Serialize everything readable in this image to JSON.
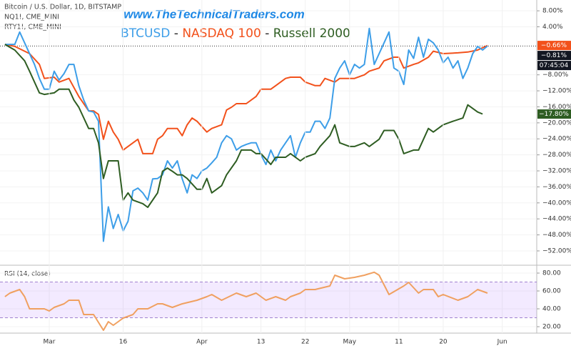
{
  "chart_data": [
    {
      "type": "line",
      "symbols": [
        "Bitcoin / U.S. Dollar, 1D, BITSTAMP",
        "NQ1!, CME_MINI",
        "RTY1!, CME_MINI"
      ],
      "watermark": "www.TheTechnicalTraders.com",
      "legend_separator": "-",
      "countdown": "07:45:04",
      "xlim": [
        -10,
        99
      ],
      "ylim": [
        -55.4,
        10.7
      ],
      "yticks": [
        {
          "value": 8,
          "label": "8.00%"
        },
        {
          "value": 4,
          "label": "4.00%"
        },
        {
          "value": -8,
          "label": "−8.00%"
        },
        {
          "value": -12,
          "label": "−12.00%"
        },
        {
          "value": -16,
          "label": "−16.00%"
        },
        {
          "value": -20,
          "label": "−20.00%"
        },
        {
          "value": -24,
          "label": "−24.00%"
        },
        {
          "value": -28,
          "label": "−28.00%"
        },
        {
          "value": -32,
          "label": "−32.00%"
        },
        {
          "value": -36,
          "label": "−36.00%"
        },
        {
          "value": -40,
          "label": "−40.00%"
        },
        {
          "value": -44,
          "label": "−44.00%"
        },
        {
          "value": -48,
          "label": "−48.00%"
        },
        {
          "value": -52,
          "label": "−52.00%"
        }
      ],
      "series": [
        {
          "name": "NASDAQ 100",
          "color": "#f2511b",
          "last_value_label": "−0.66%",
          "x": [
            -9,
            -7,
            -4,
            -2,
            -1,
            1,
            2,
            4,
            6,
            8,
            9,
            10,
            11,
            12,
            13,
            14,
            15,
            17,
            18,
            19,
            21,
            22,
            23,
            24,
            26,
            27,
            28,
            29,
            30,
            32,
            33,
            35,
            36,
            37,
            38,
            40,
            42,
            43,
            45,
            46,
            48,
            49,
            51,
            52,
            54,
            55,
            56,
            58,
            59,
            61,
            62,
            64,
            65,
            67,
            68,
            70,
            71,
            72,
            74,
            75,
            77,
            78,
            80,
            83,
            85,
            87,
            89
          ],
          "values": [
            -0.4,
            -0.9,
            -2.7,
            -5.4,
            -8.9,
            -8.6,
            -9.8,
            -8.9,
            -13.4,
            -17,
            -17,
            -17.9,
            -24.1,
            -19.6,
            -22.3,
            -24.1,
            -26.8,
            -25,
            -24.1,
            -27.7,
            -27.7,
            -24.1,
            -23.2,
            -21.4,
            -21.4,
            -23.2,
            -20.5,
            -18.8,
            -19.6,
            -22.3,
            -21.4,
            -20.5,
            -16.8,
            -16.1,
            -15.2,
            -15.2,
            -13.4,
            -11.6,
            -11.6,
            -10.7,
            -8.9,
            -8.6,
            -8.6,
            -9.8,
            -10.7,
            -10.7,
            -8.9,
            -9.8,
            -8.9,
            -8.9,
            -8.9,
            -8,
            -7.1,
            -6.3,
            -4.5,
            -3.6,
            -3.6,
            -6.3,
            -5.4,
            -5,
            -3.6,
            -2.1,
            -2.7,
            -2.5,
            -2.3,
            -1.8,
            -0.66
          ]
        },
        {
          "name": "BTCUSD",
          "color": "#3d9ee8",
          "last_value_label": "−0.81%",
          "price_line": true,
          "x": [
            -9,
            -7,
            -6,
            -5,
            -3,
            -2,
            -1,
            0,
            1,
            2,
            3,
            4,
            5,
            6,
            7,
            8,
            9,
            10,
            11,
            12,
            13,
            14,
            15,
            16,
            17,
            18,
            19,
            20,
            21,
            22,
            23,
            24,
            25,
            26,
            27,
            28,
            29,
            30,
            31,
            32,
            33,
            34,
            35,
            36,
            37,
            38,
            39,
            40,
            41,
            42,
            43,
            44,
            45,
            46,
            47,
            48,
            49,
            50,
            51,
            52,
            53,
            54,
            55,
            56,
            57,
            58,
            59,
            60,
            61,
            62,
            63,
            64,
            65,
            66,
            67,
            68,
            69,
            70,
            71,
            72,
            73,
            74,
            75,
            76,
            77,
            78,
            79,
            80,
            81,
            82,
            83,
            84,
            85,
            86,
            87,
            88,
            89
          ],
          "values": [
            -0.4,
            -0.4,
            2.7,
            0,
            -5.4,
            -8.9,
            -11.6,
            -11.6,
            -7.1,
            -9.3,
            -7.7,
            -5.4,
            -5.4,
            -10.7,
            -14.3,
            -17,
            -17.3,
            -19.6,
            -49.6,
            -41,
            -46.4,
            -42.9,
            -47,
            -44.6,
            -37,
            -36.3,
            -37.5,
            -39.3,
            -34,
            -33.9,
            -33,
            -29.5,
            -31.3,
            -29.5,
            -34,
            -37.5,
            -33,
            -33.9,
            -32,
            -31.3,
            -30,
            -28.6,
            -25,
            -23.2,
            -24,
            -26.8,
            -25.9,
            -25.4,
            -25,
            -25,
            -28,
            -30.4,
            -26.8,
            -29.5,
            -26.8,
            -25,
            -23.2,
            -28.6,
            -25,
            -22.3,
            -22.3,
            -19.6,
            -19.6,
            -21.4,
            -18.8,
            -8.9,
            -6.3,
            -4.5,
            -8,
            -5.4,
            -6.3,
            -5.4,
            3.6,
            -5.4,
            -2.7,
            0,
            2.7,
            -6.3,
            -7.1,
            -10.4,
            -1.8,
            -3.9,
            1.4,
            -3.6,
            0.9,
            0,
            -1.8,
            -5,
            -3.6,
            -6.3,
            -4.5,
            -8.9,
            -6.3,
            -2.7,
            -0.9,
            -1.8,
            -0.81
          ]
        },
        {
          "name": "Russell 2000",
          "color": "#2e5d22",
          "last_value_label": "−17.80%",
          "x": [
            -9,
            -7,
            -5,
            -4,
            -2,
            -1,
            1,
            2,
            4,
            5,
            6,
            8,
            9,
            10,
            11,
            12,
            14,
            15,
            16,
            17,
            19,
            20,
            22,
            23,
            24,
            25,
            26,
            27,
            28,
            30,
            31,
            32,
            33,
            35,
            36,
            38,
            39,
            41,
            42,
            43,
            45,
            46,
            48,
            49,
            51,
            52,
            54,
            55,
            57,
            58,
            59,
            61,
            62,
            64,
            65,
            67,
            68,
            70,
            71,
            72,
            74,
            75,
            77,
            78,
            80,
            82,
            84,
            85,
            87,
            88
          ],
          "values": [
            -0.4,
            -1.8,
            -4.5,
            -7.1,
            -12.5,
            -12.9,
            -12.5,
            -11.6,
            -11.6,
            -14.3,
            -16.1,
            -21.4,
            -21.4,
            -25,
            -33.9,
            -29.5,
            -29.5,
            -39.3,
            -37.5,
            -39.3,
            -40.2,
            -41.1,
            -37.5,
            -32.1,
            -31.3,
            -32.1,
            -33,
            -33,
            -33.9,
            -36.6,
            -36.6,
            -33.9,
            -37.5,
            -35.7,
            -33,
            -29.5,
            -26.8,
            -26.8,
            -27.7,
            -27.7,
            -30.4,
            -28.6,
            -28.6,
            -27.7,
            -29.5,
            -28.6,
            -27.7,
            -25.9,
            -23.2,
            -20.5,
            -25,
            -25.9,
            -25.9,
            -25,
            -25.9,
            -24.1,
            -21.9,
            -21.9,
            -24.1,
            -27.7,
            -26.8,
            -26.8,
            -21.4,
            -22.3,
            -20.5,
            -19.6,
            -18.8,
            -15.5,
            -17.3,
            -17.8
          ]
        }
      ]
    },
    {
      "type": "line",
      "title": "RSI (14, close)",
      "xlim": [
        -10,
        99
      ],
      "ylim": [
        12.8,
        88
      ],
      "band": [
        30,
        70
      ],
      "yticks": [
        {
          "value": 80,
          "label": "80.00"
        },
        {
          "value": 60,
          "label": "60.00"
        },
        {
          "value": 40,
          "label": "40.00"
        },
        {
          "value": 20,
          "label": "20.00"
        }
      ],
      "xticks": [
        {
          "value": 0,
          "label": "Mar"
        },
        {
          "value": 15,
          "label": "16"
        },
        {
          "value": 31,
          "label": "Apr"
        },
        {
          "value": 43,
          "label": "13"
        },
        {
          "value": 52,
          "label": "22"
        },
        {
          "value": 61,
          "label": "May"
        },
        {
          "value": 71,
          "label": "11"
        },
        {
          "value": 80,
          "label": "20"
        },
        {
          "value": 92,
          "label": "Jun"
        }
      ],
      "series": [
        {
          "color": "#f0a060",
          "x": [
            -9,
            -8,
            -6,
            -5,
            -4,
            -1,
            0,
            1,
            3,
            4,
            6,
            7,
            9,
            11,
            12,
            13,
            15,
            17,
            18,
            20,
            22,
            23,
            25,
            27,
            30,
            32,
            33,
            35,
            38,
            40,
            42,
            44,
            46,
            48,
            49,
            51,
            52,
            54,
            57,
            58,
            60,
            62,
            64,
            66,
            67,
            69,
            70,
            72,
            73,
            75,
            76,
            78,
            79,
            80,
            83,
            85,
            87,
            89
          ],
          "values": [
            53.6,
            57.6,
            61.6,
            53.6,
            40,
            40,
            37.6,
            41.6,
            45.6,
            49.6,
            49.6,
            33.6,
            33.6,
            16,
            25.6,
            21.6,
            29.6,
            33.6,
            40,
            40,
            45.6,
            45.6,
            41.6,
            45.6,
            49.6,
            53.6,
            56,
            49.6,
            57.6,
            53.6,
            57.6,
            49.6,
            53.6,
            49.6,
            53.6,
            57.6,
            61.6,
            61.6,
            65.6,
            77.6,
            73.6,
            75.2,
            77.6,
            81,
            77.6,
            56,
            59.2,
            65.6,
            69.6,
            57.6,
            61.6,
            61.6,
            53.6,
            56,
            49.6,
            53.6,
            61.6,
            57.6
          ]
        }
      ]
    }
  ]
}
